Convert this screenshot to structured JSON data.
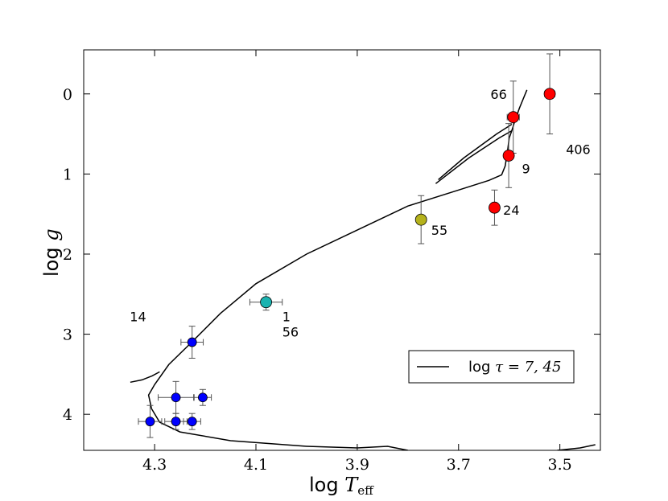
{
  "chart_data": {
    "type": "scatter",
    "x_axis": {
      "label_prefix": "log ",
      "label_math": "T",
      "label_sub": "eff",
      "lim": [
        4.44,
        3.42
      ],
      "inverted": true,
      "ticks": [
        4.3,
        4.1,
        3.9,
        3.7,
        3.5
      ],
      "tick_labels": [
        "4.3",
        "4.1",
        "3.9",
        "3.7",
        "3.5"
      ]
    },
    "y_axis": {
      "label_prefix": "log ",
      "label_math": "g",
      "lim": [
        -0.55,
        4.45
      ],
      "inverted": true,
      "ticks": [
        0,
        1,
        2,
        3,
        4
      ],
      "tick_labels": [
        "0",
        "1",
        "2",
        "3",
        "4"
      ]
    },
    "colors": {
      "blue": "#0000ff",
      "cyan": "#1bb3b0",
      "olive": "#b5b21c",
      "red": "#ff0000",
      "errorbar": "#555555",
      "line": "#000000"
    },
    "points": [
      {
        "x": 4.226,
        "y": 3.1,
        "xerr": 0.022,
        "yerr": 0.2,
        "color": "blue",
        "size": "small"
      },
      {
        "x": 4.258,
        "y": 3.79,
        "xerr": 0.035,
        "yerr": 0.2,
        "color": "blue",
        "size": "small"
      },
      {
        "x": 4.205,
        "y": 3.79,
        "xerr": 0.017,
        "yerr": 0.1,
        "color": "blue",
        "size": "small"
      },
      {
        "x": 4.309,
        "y": 4.09,
        "xerr": 0.023,
        "yerr": 0.2,
        "color": "blue",
        "size": "small"
      },
      {
        "x": 4.258,
        "y": 4.09,
        "xerr": 0.022,
        "yerr": 0.1,
        "color": "blue",
        "size": "small"
      },
      {
        "x": 4.226,
        "y": 4.09,
        "xerr": 0.017,
        "yerr": 0.1,
        "color": "blue",
        "size": "small"
      },
      {
        "x": 4.08,
        "y": 2.6,
        "xerr": 0.032,
        "yerr": 0.1,
        "color": "cyan",
        "size": "large"
      },
      {
        "x": 3.774,
        "y": 1.57,
        "xerr": 0.0,
        "yerr": 0.3,
        "color": "olive",
        "size": "large"
      },
      {
        "x": 3.592,
        "y": 0.29,
        "xerr": 0.012,
        "yerr": 0.45,
        "color": "red",
        "size": "large"
      },
      {
        "x": 3.601,
        "y": 0.77,
        "xerr": 0.008,
        "yerr": 0.4,
        "color": "red",
        "size": "large"
      },
      {
        "x": 3.629,
        "y": 1.42,
        "xerr": 0.0,
        "yerr": 0.22,
        "color": "red",
        "size": "large"
      },
      {
        "x": 3.52,
        "y": 0.0,
        "xerr": 0.01,
        "yerr": 0.5,
        "color": "red",
        "size": "large"
      }
    ],
    "annotations": [
      {
        "text": "14",
        "x": 4.349,
        "y": 2.78
      },
      {
        "text": "1",
        "x": 4.048,
        "y": 2.78
      },
      {
        "text": "56",
        "x": 4.048,
        "y": 2.97
      },
      {
        "text": "55",
        "x": 3.754,
        "y": 1.7
      },
      {
        "text": "66",
        "x": 3.637,
        "y": 0.0
      },
      {
        "text": "9",
        "x": 3.575,
        "y": 0.93
      },
      {
        "text": "24",
        "x": 3.612,
        "y": 1.45
      },
      {
        "text": "406",
        "x": 3.488,
        "y": 0.69
      }
    ],
    "isochrone": {
      "label": "log τ = 7,45",
      "segments": [
        [
          [
            3.565,
            -0.05
          ],
          [
            3.58,
            0.18
          ],
          [
            3.59,
            0.36
          ],
          [
            3.595,
            0.46
          ],
          [
            3.6,
            0.55
          ],
          [
            3.603,
            0.7
          ],
          [
            3.608,
            0.9
          ],
          [
            3.615,
            1.01
          ],
          [
            3.64,
            1.08
          ],
          [
            3.7,
            1.2
          ],
          [
            3.8,
            1.4
          ],
          [
            3.9,
            1.7
          ],
          [
            4.0,
            2.0
          ],
          [
            4.1,
            2.37
          ],
          [
            4.17,
            2.74
          ],
          [
            4.23,
            3.12
          ],
          [
            4.272,
            3.38
          ],
          [
            4.3,
            3.63
          ],
          [
            4.312,
            3.76
          ],
          [
            4.306,
            3.93
          ],
          [
            4.29,
            4.1
          ],
          [
            4.25,
            4.22
          ],
          [
            4.15,
            4.33
          ],
          [
            4.0,
            4.4
          ],
          [
            3.9,
            4.42
          ],
          [
            3.84,
            4.4
          ],
          [
            3.8,
            4.45
          ]
        ],
        [
          [
            3.595,
            0.46
          ],
          [
            3.62,
            0.55
          ],
          [
            3.68,
            0.8
          ],
          [
            3.745,
            1.12
          ]
        ],
        [
          [
            3.595,
            0.38
          ],
          [
            3.625,
            0.5
          ],
          [
            3.69,
            0.8
          ],
          [
            3.74,
            1.07
          ]
        ],
        [
          [
            4.29,
            3.47
          ],
          [
            4.305,
            3.52
          ],
          [
            4.325,
            3.57
          ],
          [
            4.348,
            3.6
          ]
        ],
        [
          [
            3.505,
            4.45
          ],
          [
            3.46,
            4.42
          ],
          [
            3.43,
            4.38
          ]
        ]
      ]
    },
    "legend": {
      "label_prefix": "log ",
      "label_math": "τ = 7, 45",
      "placement": "lower-right"
    }
  }
}
